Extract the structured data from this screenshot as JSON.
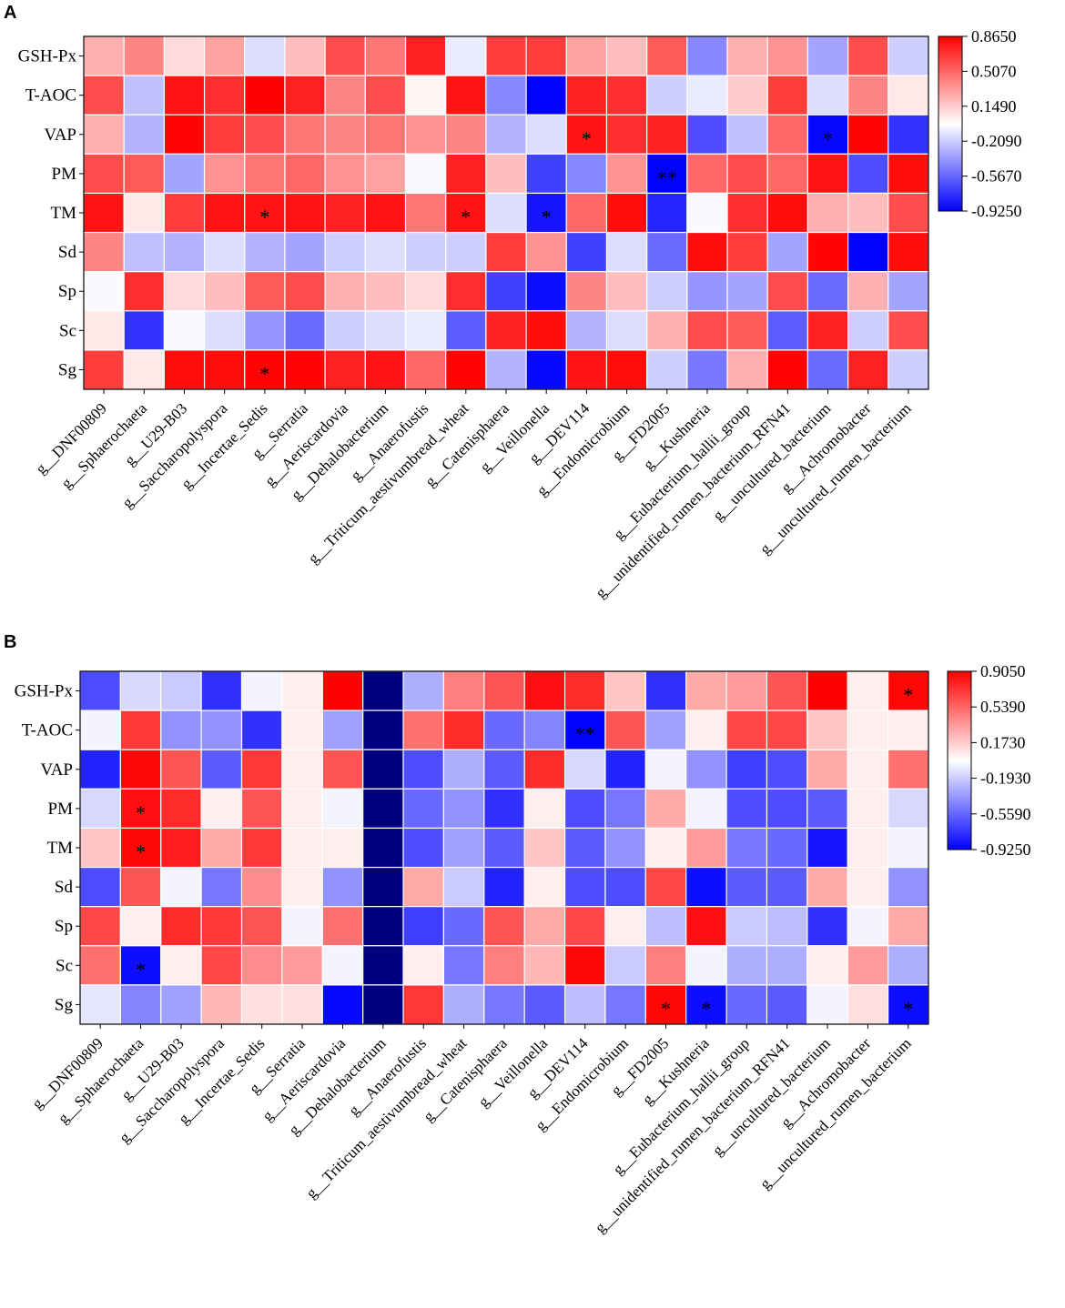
{
  "colors": {
    "neg": "#0000ff",
    "mid": "#ffffff",
    "pos": "#ff0000"
  },
  "chart_data": [
    {
      "type": "heatmap",
      "panel": "A",
      "rows": [
        "GSH-Px",
        "T-AOC",
        "VAP",
        "PM",
        "TM",
        "Sd",
        "Sp",
        "Sc",
        "Sg"
      ],
      "columns": [
        "g__DNF00809",
        "g__Sphaerochaeta",
        "g__U29-B03",
        "g__Saccharopolyspora",
        "g__Incertae_Sedis",
        "g__Serratia",
        "g__Aeriscardovia",
        "g__Dehalobacterium",
        "g__Anaerofustis",
        "g__Triticum_aestivumbread_wheat",
        "g__Catenisphaera",
        "g__Veillonella",
        "g__DEV114",
        "g__Endomicrobium",
        "g__FD2005",
        "g__Kushneria",
        "g__Eubacterium_hallii_group",
        "g__unidentified_rumen_bacterium_RFN41",
        "g__uncultured_bacterium",
        "g__Achromobacter",
        "g__uncultured_rumen_bacterium"
      ],
      "colorbar_ticks": [
        "0.8650",
        "0.5070",
        "0.1490",
        "-0.2090",
        "-0.5670",
        "-0.9250"
      ],
      "vmin": -0.925,
      "vmax": 0.865,
      "values": [
        [
          0.25,
          0.4,
          0.1,
          0.3,
          -0.15,
          0.2,
          0.6,
          0.45,
          0.75,
          -0.1,
          0.65,
          0.65,
          0.3,
          0.2,
          0.55,
          -0.45,
          0.25,
          0.35,
          -0.35,
          0.6,
          -0.2
        ],
        [
          0.6,
          -0.25,
          0.8,
          0.7,
          0.86,
          0.75,
          0.4,
          0.6,
          0.0,
          0.8,
          -0.45,
          -0.92,
          0.75,
          0.7,
          -0.2,
          -0.1,
          0.15,
          0.65,
          -0.15,
          0.4,
          0.05
        ],
        [
          0.25,
          -0.3,
          0.85,
          0.65,
          0.6,
          0.45,
          0.4,
          0.45,
          0.35,
          0.4,
          -0.3,
          -0.15,
          0.8,
          0.7,
          0.75,
          -0.65,
          -0.25,
          0.5,
          -0.9,
          0.85,
          -0.75
        ],
        [
          0.6,
          0.55,
          -0.35,
          0.35,
          0.45,
          0.5,
          0.35,
          0.3,
          -0.05,
          0.75,
          0.2,
          -0.7,
          -0.45,
          0.35,
          -0.92,
          0.5,
          0.6,
          0.5,
          0.8,
          -0.65,
          0.82
        ],
        [
          0.8,
          0.05,
          0.65,
          0.8,
          0.8,
          0.8,
          0.75,
          0.8,
          0.45,
          0.8,
          -0.15,
          -0.85,
          0.5,
          0.82,
          -0.8,
          -0.05,
          0.7,
          0.82,
          0.25,
          0.2,
          0.6
        ],
        [
          0.4,
          -0.25,
          -0.3,
          -0.15,
          -0.3,
          -0.35,
          -0.2,
          -0.15,
          -0.2,
          -0.2,
          0.65,
          0.35,
          -0.7,
          -0.15,
          -0.55,
          0.82,
          0.65,
          -0.35,
          0.85,
          -0.92,
          0.82
        ],
        [
          -0.05,
          0.7,
          0.1,
          0.2,
          0.55,
          0.6,
          0.25,
          0.2,
          0.1,
          0.7,
          -0.7,
          -0.88,
          0.4,
          0.2,
          -0.2,
          -0.4,
          -0.35,
          0.6,
          -0.55,
          0.25,
          -0.35
        ],
        [
          0.05,
          -0.75,
          -0.05,
          -0.15,
          -0.4,
          -0.55,
          -0.2,
          -0.15,
          -0.1,
          -0.6,
          0.75,
          0.82,
          -0.3,
          -0.15,
          0.25,
          0.6,
          0.55,
          -0.6,
          0.75,
          -0.2,
          0.6
        ],
        [
          0.65,
          0.05,
          0.82,
          0.82,
          0.85,
          0.85,
          0.75,
          0.8,
          0.5,
          0.85,
          -0.3,
          -0.9,
          0.8,
          0.82,
          -0.2,
          -0.5,
          0.25,
          0.85,
          -0.55,
          0.75,
          -0.2
        ]
      ],
      "significance": [
        {
          "row": "VAP",
          "column": "g__DEV114",
          "mark": "*"
        },
        {
          "row": "VAP",
          "column": "g__uncultured_bacterium",
          "mark": "*"
        },
        {
          "row": "PM",
          "column": "g__FD2005",
          "mark": "**"
        },
        {
          "row": "TM",
          "column": "g__Incertae_Sedis",
          "mark": "*"
        },
        {
          "row": "TM",
          "column": "g__Triticum_aestivumbread_wheat",
          "mark": "*"
        },
        {
          "row": "TM",
          "column": "g__Veillonella",
          "mark": "*"
        },
        {
          "row": "Sg",
          "column": "g__Incertae_Sedis",
          "mark": "*"
        }
      ]
    },
    {
      "type": "heatmap",
      "panel": "B",
      "rows": [
        "GSH-Px",
        "T-AOC",
        "VAP",
        "PM",
        "TM",
        "Sd",
        "Sp",
        "Sc",
        "Sg"
      ],
      "columns": [
        "g__DNF00809",
        "g__Sphaerochaeta",
        "g__U29-B03",
        "g__Saccharopolyspora",
        "g__Incertae_Sedis",
        "g__Serratia",
        "g__Aeriscardovia",
        "g__Dehalobacterium",
        "g__Anaerofustis",
        "g__Triticum_aestivumbread_wheat",
        "g__Catenisphaera",
        "g__Veillonella",
        "g__DEV114",
        "g__Endomicrobium",
        "g__FD2005",
        "g__Kushneria",
        "g__Eubacterium_hallii_group",
        "g__unidentified_rumen_bacterium_RFN41",
        "g__uncultured_bacterium",
        "g__Achromobacter",
        "g__uncultured_rumen_bacterium"
      ],
      "colorbar_ticks": [
        "0.9050",
        "0.5390",
        "0.1730",
        "-0.1930",
        "-0.5590",
        "-0.9250"
      ],
      "vmin": -0.925,
      "vmax": 0.905,
      "values": [
        [
          -0.65,
          -0.15,
          -0.2,
          -0.75,
          -0.05,
          0.05,
          0.9,
          -1.3,
          -0.3,
          0.45,
          0.6,
          0.85,
          0.75,
          0.2,
          -0.75,
          0.3,
          0.35,
          0.6,
          0.9,
          0.05,
          0.88
        ],
        [
          -0.05,
          0.7,
          -0.4,
          -0.4,
          -0.75,
          0.05,
          -0.35,
          -1.3,
          0.5,
          0.75,
          -0.55,
          -0.45,
          -0.92,
          0.6,
          -0.35,
          0.05,
          0.65,
          0.65,
          0.2,
          0.05,
          0.05
        ],
        [
          -0.8,
          0.88,
          0.6,
          -0.6,
          0.7,
          0.05,
          0.6,
          -1.3,
          -0.65,
          -0.3,
          -0.6,
          0.75,
          -0.15,
          -0.8,
          -0.05,
          -0.4,
          -0.7,
          -0.65,
          0.3,
          0.05,
          0.5
        ],
        [
          -0.15,
          0.85,
          0.75,
          0.05,
          0.6,
          0.05,
          -0.05,
          -1.3,
          -0.55,
          -0.4,
          -0.75,
          0.05,
          -0.65,
          -0.5,
          0.3,
          -0.05,
          -0.65,
          -0.65,
          -0.6,
          0.05,
          -0.15
        ],
        [
          0.2,
          0.88,
          0.8,
          0.3,
          0.7,
          0.05,
          0.05,
          -1.3,
          -0.65,
          -0.35,
          -0.6,
          0.2,
          -0.6,
          -0.4,
          0.05,
          0.35,
          -0.5,
          -0.55,
          -0.85,
          0.05,
          -0.05
        ],
        [
          -0.65,
          0.6,
          -0.05,
          -0.5,
          0.4,
          0.05,
          -0.4,
          -1.3,
          0.3,
          -0.2,
          -0.8,
          0.05,
          -0.65,
          -0.65,
          0.65,
          -0.88,
          -0.6,
          -0.6,
          0.3,
          0.05,
          -0.4
        ],
        [
          0.65,
          0.05,
          0.75,
          0.7,
          0.6,
          -0.05,
          0.5,
          -1.3,
          -0.7,
          -0.55,
          0.6,
          0.3,
          0.65,
          0.05,
          -0.25,
          0.85,
          -0.2,
          -0.25,
          -0.75,
          -0.05,
          0.3
        ],
        [
          0.5,
          -0.88,
          0.05,
          0.65,
          0.4,
          0.35,
          -0.05,
          -1.3,
          0.05,
          -0.5,
          0.45,
          0.25,
          0.88,
          -0.2,
          0.45,
          -0.05,
          -0.3,
          -0.3,
          0.05,
          0.35,
          -0.3
        ],
        [
          -0.1,
          -0.45,
          -0.35,
          0.25,
          0.1,
          0.1,
          -0.9,
          -1.3,
          0.7,
          -0.3,
          -0.5,
          -0.6,
          -0.25,
          -0.5,
          0.88,
          -0.88,
          -0.55,
          -0.6,
          -0.05,
          0.1,
          -0.88
        ]
      ],
      "significance": [
        {
          "row": "GSH-Px",
          "column": "g__uncultured_rumen_bacterium",
          "mark": "*"
        },
        {
          "row": "T-AOC",
          "column": "g__DEV114",
          "mark": "**"
        },
        {
          "row": "PM",
          "column": "g__Sphaerochaeta",
          "mark": "*"
        },
        {
          "row": "TM",
          "column": "g__Sphaerochaeta",
          "mark": "*"
        },
        {
          "row": "Sc",
          "column": "g__Sphaerochaeta",
          "mark": "*"
        },
        {
          "row": "Sg",
          "column": "g__FD2005",
          "mark": "*"
        },
        {
          "row": "Sg",
          "column": "g__Kushneria",
          "mark": "*"
        },
        {
          "row": "Sg",
          "column": "g__uncultured_rumen_bacterium",
          "mark": "*"
        }
      ]
    }
  ]
}
